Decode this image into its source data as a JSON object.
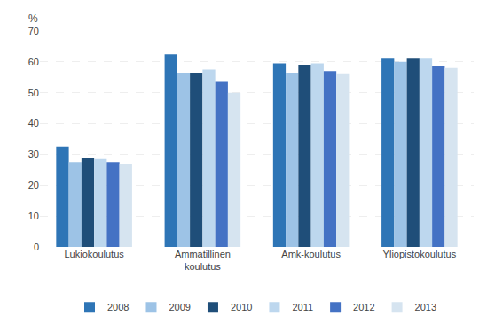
{
  "chart_data": {
    "type": "bar",
    "categories": [
      "Lukiokoulutus",
      "Ammatillinen\nkoulutus",
      "Amk-koulutus",
      "Yliopistokoulutus"
    ],
    "series": [
      {
        "name": "2008",
        "color": "#2E75B6",
        "values": [
          32.5,
          62.5,
          59.5,
          61.0
        ]
      },
      {
        "name": "2009",
        "color": "#9DC3E6",
        "values": [
          27.5,
          56.5,
          56.5,
          60.0
        ]
      },
      {
        "name": "2010",
        "color": "#1F4E79",
        "values": [
          29.0,
          56.5,
          59.0,
          61.0
        ]
      },
      {
        "name": "2011",
        "color": "#BDD7EE",
        "values": [
          28.5,
          57.5,
          59.5,
          61.0
        ]
      },
      {
        "name": "2012",
        "color": "#4472C4",
        "values": [
          27.5,
          53.5,
          57.0,
          58.5
        ]
      },
      {
        "name": "2013",
        "color": "#D6E4F0",
        "values": [
          27.0,
          50.0,
          56.0,
          58.0
        ]
      }
    ],
    "ylabel": "%",
    "ylim": [
      0,
      70
    ],
    "yticks": [
      0,
      10,
      20,
      30,
      40,
      50,
      60,
      70
    ],
    "grid": true,
    "legend": "bottom"
  }
}
